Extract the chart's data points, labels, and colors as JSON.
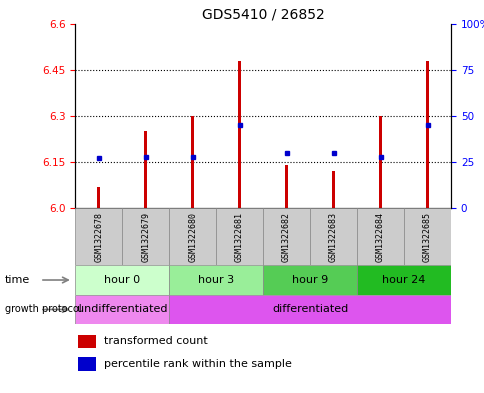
{
  "title": "GDS5410 / 26852",
  "samples": [
    "GSM1322678",
    "GSM1322679",
    "GSM1322680",
    "GSM1322681",
    "GSM1322682",
    "GSM1322683",
    "GSM1322684",
    "GSM1322685"
  ],
  "bar_values": [
    6.07,
    6.25,
    6.3,
    6.48,
    6.14,
    6.12,
    6.3,
    6.48
  ],
  "bar_base": 6.0,
  "blue_dot_values": [
    27,
    28,
    28,
    45,
    30,
    30,
    28,
    45
  ],
  "ylim_left": [
    6.0,
    6.6
  ],
  "ylim_right": [
    0,
    100
  ],
  "yticks_left": [
    6.0,
    6.15,
    6.3,
    6.45,
    6.6
  ],
  "yticks_right": [
    0,
    25,
    50,
    75,
    100
  ],
  "bar_color": "#cc0000",
  "dot_color": "#0000cc",
  "hline_values": [
    6.15,
    6.3,
    6.45
  ],
  "time_groups": [
    {
      "label": "hour 0",
      "start": 0,
      "end": 2,
      "color": "#ccffcc"
    },
    {
      "label": "hour 3",
      "start": 2,
      "end": 4,
      "color": "#99ee99"
    },
    {
      "label": "hour 9",
      "start": 4,
      "end": 6,
      "color": "#55cc55"
    },
    {
      "label": "hour 24",
      "start": 6,
      "end": 8,
      "color": "#22bb22"
    }
  ],
  "protocol_groups": [
    {
      "label": "undifferentiated",
      "start": 0,
      "end": 2,
      "color": "#ee88ee"
    },
    {
      "label": "differentiated",
      "start": 2,
      "end": 8,
      "color": "#dd55ee"
    }
  ],
  "legend_bar_label": "transformed count",
  "legend_dot_label": "percentile rank within the sample",
  "bar_width": 0.07,
  "bar_linewidth": 2.5,
  "sample_box_color": "#cccccc",
  "border_color": "#888888"
}
